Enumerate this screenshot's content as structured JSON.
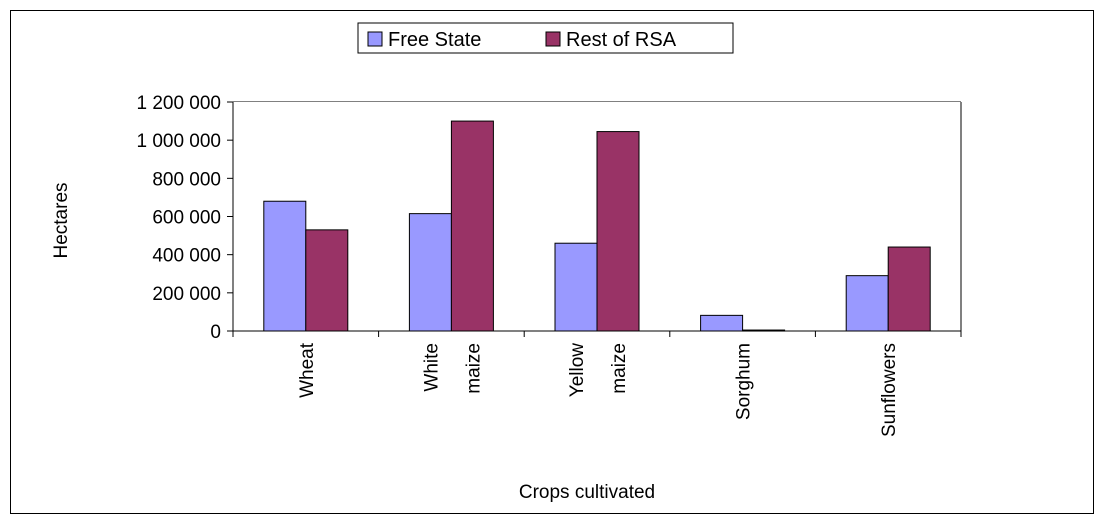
{
  "chart_data": {
    "type": "bar",
    "title": "",
    "xlabel": "Crops cultivated",
    "ylabel": "Hectares",
    "ylim": [
      0,
      1200000
    ],
    "yticks": [
      0,
      200000,
      400000,
      600000,
      800000,
      1000000,
      1200000
    ],
    "ytick_labels": [
      "0",
      "200 000",
      "400 000",
      "600 000",
      "800 000",
      "1 000 000",
      "1 200 000"
    ],
    "categories": [
      "Wheat",
      "White maize",
      "Yellow maize",
      "Sorghum",
      "Sunflowers"
    ],
    "category_label_lines": [
      [
        "Wheat"
      ],
      [
        "White",
        "maize"
      ],
      [
        "Yellow",
        "maize"
      ],
      [
        "Sorghum"
      ],
      [
        "Sunflowers"
      ]
    ],
    "series": [
      {
        "name": "Free State",
        "color": "#9999ff",
        "values": [
          680000,
          615000,
          460000,
          82000,
          290000
        ]
      },
      {
        "name": "Rest of RSA",
        "color": "#993366",
        "values": [
          530000,
          1100000,
          1045000,
          5000,
          440000
        ]
      }
    ],
    "grid": true,
    "legend_position": "top-center"
  }
}
